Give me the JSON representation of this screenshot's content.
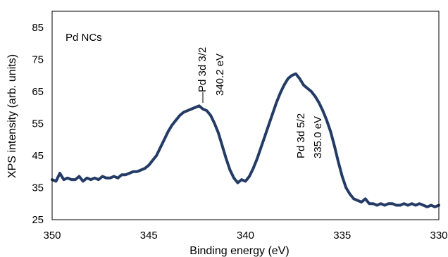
{
  "chart_data": {
    "type": "line",
    "title": "",
    "xlabel": "Binding energy (eV)",
    "ylabel": "XPS intensity (arb. units)",
    "xlim": [
      350,
      330
    ],
    "ylim": [
      25,
      90
    ],
    "x_reversed": true,
    "x_ticks": [
      "350",
      "345",
      "340",
      "335",
      "330"
    ],
    "y_ticks": [
      "25",
      "35",
      "45",
      "55",
      "65",
      "75",
      "85"
    ],
    "grid": false,
    "legend": "none",
    "series": [
      {
        "color": "#243b66",
        "x": [
          350.0,
          349.8,
          349.6,
          349.4,
          349.2,
          349.0,
          348.8,
          348.6,
          348.4,
          348.2,
          348.0,
          347.8,
          347.6,
          347.4,
          347.2,
          347.0,
          346.8,
          346.6,
          346.4,
          346.2,
          346.0,
          345.8,
          345.6,
          345.4,
          345.2,
          345.0,
          344.8,
          344.6,
          344.4,
          344.2,
          344.0,
          343.8,
          343.6,
          343.4,
          343.2,
          343.0,
          342.8,
          342.6,
          342.4,
          342.2,
          342.0,
          341.8,
          341.6,
          341.4,
          341.2,
          341.0,
          340.8,
          340.6,
          340.4,
          340.2,
          340.0,
          339.8,
          339.6,
          339.4,
          339.2,
          339.0,
          338.8,
          338.6,
          338.4,
          338.2,
          338.0,
          337.8,
          337.6,
          337.4,
          337.2,
          337.0,
          336.8,
          336.6,
          336.4,
          336.2,
          336.0,
          335.8,
          335.6,
          335.4,
          335.2,
          335.0,
          334.8,
          334.6,
          334.4,
          334.2,
          334.0,
          333.8,
          333.6,
          333.4,
          333.2,
          333.0,
          332.8,
          332.6,
          332.4,
          332.2,
          332.0,
          331.8,
          331.6,
          331.4,
          331.2,
          331.0,
          330.8,
          330.6,
          330.4,
          330.2,
          330.0
        ],
        "y": [
          37.5,
          37.0,
          39.5,
          37.5,
          38.0,
          37.5,
          37.5,
          38.5,
          37.0,
          38.0,
          37.5,
          38.0,
          37.5,
          38.5,
          38.0,
          38.0,
          38.5,
          38.0,
          39.0,
          39.0,
          39.5,
          40.0,
          40.0,
          40.5,
          41.0,
          42.0,
          43.5,
          45.0,
          47.5,
          50.0,
          52.5,
          54.5,
          56.0,
          57.5,
          58.5,
          59.0,
          59.5,
          60.0,
          60.5,
          59.5,
          59.0,
          57.5,
          55.0,
          52.0,
          48.0,
          44.0,
          40.5,
          38.0,
          36.5,
          37.5,
          37.0,
          38.5,
          41.0,
          44.0,
          47.5,
          51.0,
          54.5,
          58.0,
          61.5,
          64.5,
          67.0,
          69.0,
          70.0,
          70.5,
          69.0,
          67.0,
          66.0,
          65.0,
          63.5,
          61.5,
          59.0,
          56.0,
          52.5,
          48.0,
          43.0,
          38.5,
          35.0,
          33.0,
          31.5,
          31.0,
          30.5,
          31.5,
          30.0,
          30.0,
          29.5,
          30.0,
          29.5,
          30.0,
          30.0,
          29.5,
          29.5,
          30.0,
          29.5,
          30.0,
          29.5,
          30.0,
          29.5,
          29.0,
          29.5,
          29.0,
          29.5
        ]
      }
    ],
    "annotations": {
      "sample_label": "Pd NCs",
      "peak1_line1": "—Pd 3d 3/2",
      "peak1_line2": "340.2 eV",
      "peak2_line1": "Pd 3d 5/2",
      "peak2_line2": "335.0 eV"
    }
  }
}
